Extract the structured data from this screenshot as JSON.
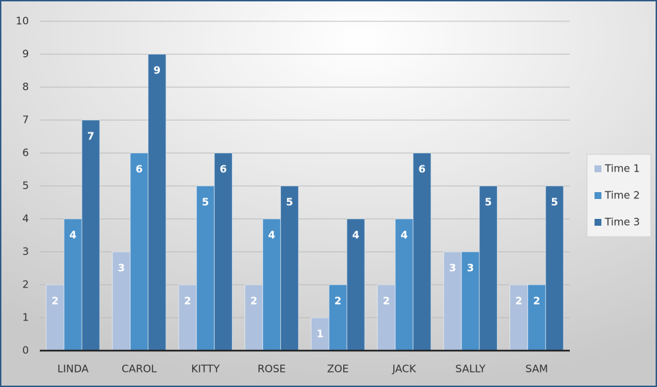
{
  "chart_data": {
    "type": "bar",
    "categories": [
      "LINDA",
      "CAROL",
      "KITTY",
      "ROSE",
      "ZOE",
      "JACK",
      "SALLY",
      "SAM"
    ],
    "series": [
      {
        "name": "Time 1",
        "color": "#adc0dd",
        "values": [
          2,
          3,
          2,
          2,
          1,
          2,
          3,
          2
        ]
      },
      {
        "name": "Time 2",
        "color": "#4a90c9",
        "values": [
          4,
          6,
          5,
          4,
          2,
          4,
          3,
          2
        ]
      },
      {
        "name": "Time 3",
        "color": "#3a72a6",
        "values": [
          7,
          9,
          6,
          5,
          4,
          6,
          5,
          5
        ]
      }
    ],
    "ylim": [
      0,
      10
    ],
    "yticks": [
      0,
      1,
      2,
      3,
      4,
      5,
      6,
      7,
      8,
      9,
      10
    ],
    "grid": true,
    "legend": "right"
  }
}
